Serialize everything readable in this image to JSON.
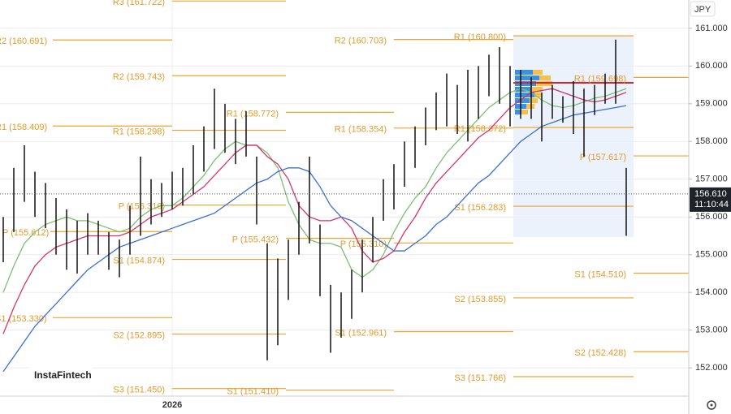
{
  "chart_data": {
    "type": "ohlc",
    "currency": "JPY",
    "watermark": "InstaFintech",
    "countdown": "11:10:44",
    "current_price": {
      "value": 156.61,
      "label": "156.610"
    },
    "ylim": [
      151.25,
      161.75
    ],
    "yticks": [
      {
        "value": 152,
        "label": "152.000"
      },
      {
        "value": 153,
        "label": "153.000"
      },
      {
        "value": 154,
        "label": "154.000"
      },
      {
        "value": 155,
        "label": "155.000"
      },
      {
        "value": 156,
        "label": "156.000"
      },
      {
        "value": 157,
        "label": "157.000"
      },
      {
        "value": 158,
        "label": "158.000"
      },
      {
        "value": 159,
        "label": "159.000"
      },
      {
        "value": 160,
        "label": "160.000"
      },
      {
        "value": 161,
        "label": "161.000"
      }
    ],
    "grid": true,
    "bar_color": "#111111",
    "level_color": "#f0a230",
    "categories": [
      null,
      null,
      null,
      null,
      null,
      null,
      null,
      null,
      null,
      null,
      null,
      null,
      null,
      null,
      null,
      null,
      "2026",
      null,
      null,
      null,
      null,
      null,
      null,
      null,
      null,
      null,
      null,
      null,
      null,
      null,
      null,
      null,
      null,
      null,
      null,
      null,
      null,
      null,
      null,
      null,
      null,
      null,
      null,
      null,
      null,
      null,
      null,
      null,
      null,
      null,
      null,
      null,
      null,
      null,
      null,
      null,
      null,
      null,
      null,
      null
    ],
    "high": [
      156.0,
      157.3,
      157.9,
      157.2,
      156.9,
      156.5,
      156.2,
      155.9,
      156.1,
      155.9,
      155.6,
      155.4,
      156.3,
      157.6,
      157.0,
      156.9,
      157.2,
      157.3,
      157.9,
      158.4,
      159.4,
      159.0,
      158.6,
      158.8,
      157.6,
      155.3,
      154.9,
      155.4,
      156.4,
      157.6,
      155.8,
      154.2,
      154.0,
      154.6,
      155.4,
      156.0,
      157.0,
      157.4,
      158.0,
      158.4,
      158.9,
      159.3,
      159.8,
      159.5,
      159.9,
      160.0,
      160.3,
      160.5,
      160.0,
      159.9,
      159.7,
      159.3,
      159.5,
      159.2,
      159.6,
      159.4,
      159.5,
      159.8,
      160.7,
      157.3
    ],
    "low": [
      154.8,
      155.6,
      156.4,
      156.0,
      155.7,
      155.0,
      154.6,
      154.5,
      155.0,
      155.0,
      154.6,
      154.4,
      155.0,
      155.5,
      155.8,
      156.0,
      156.2,
      156.3,
      156.6,
      157.2,
      157.8,
      157.7,
      157.4,
      157.6,
      155.8,
      152.2,
      152.6,
      153.8,
      155.0,
      155.3,
      153.9,
      152.4,
      152.8,
      153.3,
      154.0,
      154.8,
      155.9,
      156.2,
      156.8,
      157.3,
      157.9,
      158.3,
      158.4,
      158.2,
      158.0,
      158.6,
      159.2,
      159.0,
      158.4,
      158.6,
      158.6,
      158.0,
      158.6,
      158.5,
      158.2,
      157.6,
      158.7,
      159.0,
      159.0,
      155.5
    ],
    "series": [
      {
        "color": "#7cbf72",
        "values": [
          154.0,
          154.7,
          155.3,
          155.6,
          155.8,
          155.9,
          156.0,
          155.9,
          155.9,
          155.8,
          155.7,
          155.6,
          155.7,
          156.0,
          156.2,
          156.3,
          156.3,
          156.5,
          156.8,
          157.1,
          157.5,
          157.8,
          158.0,
          157.9,
          157.9,
          157.7,
          157.3,
          156.4,
          155.8,
          155.4,
          155.3,
          155.3,
          155.2,
          154.6,
          154.4,
          154.6,
          155.0,
          155.6,
          156.1,
          156.5,
          156.8,
          157.3,
          157.7,
          158.0,
          158.3,
          158.6,
          158.9,
          159.1,
          159.3,
          159.4,
          159.3,
          159.1,
          158.95,
          158.9,
          158.95,
          159.05,
          159.15,
          159.2,
          159.3,
          159.4
        ]
      },
      {
        "color": "#d6336c",
        "values": [
          152.9,
          153.6,
          154.2,
          154.7,
          155.0,
          155.2,
          155.3,
          155.4,
          155.5,
          155.5,
          155.5,
          155.5,
          155.6,
          155.8,
          156.0,
          156.1,
          156.2,
          156.4,
          156.6,
          156.8,
          157.1,
          157.4,
          157.7,
          157.9,
          157.9,
          157.6,
          157.4,
          157.0,
          156.3,
          156.0,
          155.9,
          155.9,
          156.0,
          155.7,
          155.1,
          154.8,
          154.9,
          155.1,
          155.6,
          156.0,
          156.5,
          156.9,
          157.2,
          157.5,
          157.8,
          158.1,
          158.3,
          158.6,
          158.9,
          159.1,
          159.3,
          159.35,
          159.4,
          159.3,
          159.2,
          159.1,
          159.05,
          159.1,
          159.2,
          159.3
        ]
      },
      {
        "color": "#3b6fd4",
        "values": [
          151.9,
          152.3,
          152.7,
          153.1,
          153.4,
          153.7,
          154.0,
          154.3,
          154.6,
          154.8,
          155.0,
          155.2,
          155.3,
          155.4,
          155.5,
          155.6,
          155.7,
          155.8,
          155.9,
          156.0,
          156.1,
          156.3,
          156.5,
          156.7,
          156.9,
          157.0,
          157.2,
          157.3,
          157.3,
          157.2,
          156.8,
          156.3,
          156.0,
          155.9,
          155.7,
          155.5,
          155.3,
          155.1,
          155.1,
          155.3,
          155.5,
          155.8,
          156.0,
          156.3,
          156.6,
          156.9,
          157.1,
          157.4,
          157.7,
          158.0,
          158.2,
          158.4,
          158.5,
          158.6,
          158.7,
          158.75,
          158.8,
          158.85,
          158.9,
          158.95
        ]
      }
    ],
    "levels": [
      {
        "value": 161.722,
        "label": "R3 (161.722)"
      },
      {
        "value": 159.743,
        "label": "R2 (159.743)"
      },
      {
        "value": 158.298,
        "label": "R1 (158.298)"
      },
      {
        "value": 156.316,
        "label": "P (156.316)"
      },
      {
        "value": 154.874,
        "label": "S1 (154.874)"
      },
      {
        "value": 152.895,
        "label": "S2 (152.895)"
      },
      {
        "value": 151.45,
        "label": "S3 (151.450)"
      },
      {
        "value": 158.772,
        "label": "R1 (158.772)"
      },
      {
        "value": 155.432,
        "label": "P (155.432)"
      },
      {
        "value": 151.41,
        "label": "S1 (151.410)"
      },
      {
        "value": 160.703,
        "label": "R2 (160.703)"
      },
      {
        "value": 158.354,
        "label": "R1 (158.354)"
      },
      {
        "value": 155.31,
        "label": "P (155.310)"
      },
      {
        "value": 152.961,
        "label": "S1 (152.961)"
      },
      {
        "value": 160.8,
        "label": "R1 (160.800)"
      },
      {
        "value": 158.372,
        "label": "R1 (158.372)"
      },
      {
        "value": 156.283,
        "label": "S1 (156.283)"
      },
      {
        "value": 153.855,
        "label": "S2 (153.855)"
      },
      {
        "value": 151.766,
        "label": "S3 (151.766)"
      },
      {
        "value": 159.698,
        "label": "R1 (159.698)"
      },
      {
        "value": 157.617,
        "label": "P (157.617)"
      },
      {
        "value": 154.51,
        "label": "S1 (154.510)"
      },
      {
        "value": 152.428,
        "label": "S2 (152.428)"
      },
      {
        "value": 160.691,
        "label": "R2 (160.691)"
      },
      {
        "value": 158.409,
        "label": "R1 (158.409)"
      },
      {
        "value": 155.612,
        "label": "P (155.612)"
      },
      {
        "value": 153.33,
        "label": "S1 (153.330)"
      }
    ]
  }
}
